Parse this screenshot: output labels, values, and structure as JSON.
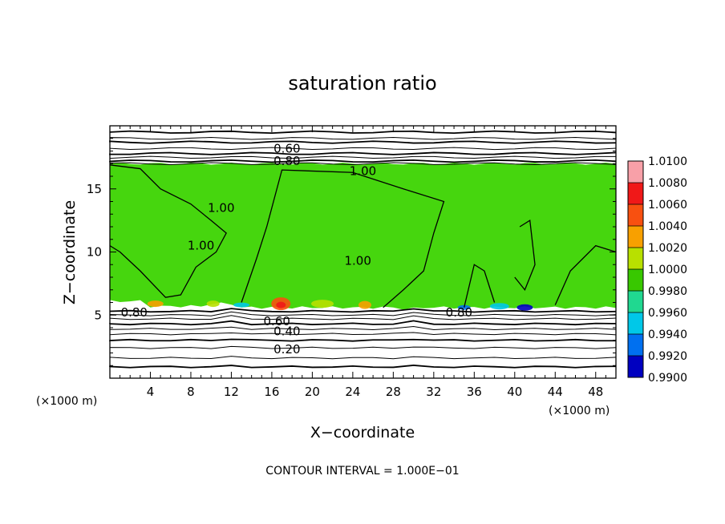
{
  "chart_data": {
    "type": "heatmap",
    "title": "saturation ratio",
    "xlabel": "X−coordinate",
    "ylabel": "Z−coordinate",
    "x_unit_label": "(×1000 m)",
    "z_unit_label": "(×1000 m)",
    "footer": "CONTOUR INTERVAL = 1.000E−01",
    "xlim": [
      0,
      50
    ],
    "ylim": [
      0,
      20
    ],
    "x_ticks": [
      "4",
      "8",
      "12",
      "16",
      "20",
      "24",
      "28",
      "32",
      "36",
      "40",
      "44",
      "48"
    ],
    "x_tick_values": [
      4,
      8,
      12,
      16,
      20,
      24,
      28,
      32,
      36,
      40,
      44,
      48
    ],
    "y_ticks": [
      "5",
      "10",
      "15"
    ],
    "y_tick_values": [
      5,
      10,
      15
    ],
    "colorbar": {
      "labels": [
        "1.0100",
        "1.0080",
        "1.0060",
        "1.0040",
        "1.0020",
        "1.0000",
        "0.9980",
        "0.9960",
        "0.9940",
        "0.9920",
        "0.9900"
      ],
      "colors": [
        "#f8a0a8",
        "#f01818",
        "#f85010",
        "#f8a000",
        "#b8e000",
        "#38c800",
        "#20d890",
        "#00c8e8",
        "#0070f0",
        "#0000c0",
        "#7000a0"
      ]
    },
    "field_color": "#46d60e",
    "contour_labels": [
      {
        "text": "0.60",
        "x": 17.5,
        "z": 18.2
      },
      {
        "text": "0.80",
        "x": 17.5,
        "z": 17.2
      },
      {
        "text": "1.00",
        "x": 25.0,
        "z": 16.4
      },
      {
        "text": "1.00",
        "x": 11.0,
        "z": 13.5
      },
      {
        "text": "1.00",
        "x": 9.0,
        "z": 10.5
      },
      {
        "text": "1.00",
        "x": 24.5,
        "z": 9.3
      },
      {
        "text": "0.80",
        "x": 2.4,
        "z": 5.2
      },
      {
        "text": "0.80",
        "x": 34.5,
        "z": 5.2
      },
      {
        "text": "0.60",
        "x": 16.5,
        "z": 4.5
      },
      {
        "text": "0.40",
        "x": 17.5,
        "z": 3.7
      },
      {
        "text": "0.20",
        "x": 17.5,
        "z": 2.3
      }
    ],
    "upper_contours_z": [
      19.5,
      19.0,
      18.7,
      18.2,
      17.8,
      17.5,
      17.2,
      17.0
    ],
    "lower_contours_z": [
      5.3,
      5.0,
      4.7,
      4.3,
      3.9,
      3.5,
      3.0,
      2.4,
      1.6,
      0.9
    ]
  }
}
